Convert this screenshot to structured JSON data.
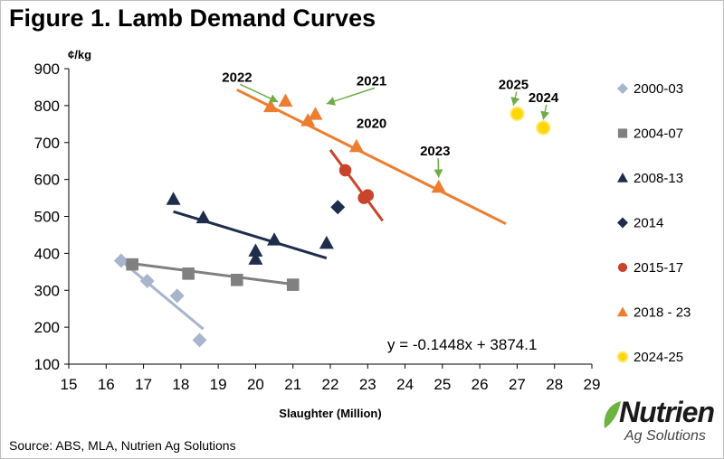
{
  "title": "Figure 1. Lamb Demand Curves",
  "source": "Source: ABS, MLA, Nutrien Ag Solutions",
  "logo": {
    "word": "Nutrien",
    "sub": "Ag Solutions"
  },
  "chart_data": {
    "type": "scatter",
    "xlabel": "Slaughter (Million)",
    "ylabel": "¢/kg",
    "xlim": [
      15,
      29
    ],
    "ylim": [
      100,
      900
    ],
    "x_ticks": [
      15,
      16,
      17,
      18,
      19,
      20,
      21,
      22,
      23,
      24,
      25,
      26,
      27,
      28,
      29
    ],
    "y_ticks": [
      100,
      200,
      300,
      400,
      500,
      600,
      700,
      800,
      900
    ],
    "grid": false,
    "legend_position": "right",
    "equation": "y = -0.1448x + 3874.1",
    "series": [
      {
        "name": "2000-03",
        "color": "#a9b5cf",
        "marker": "diamond",
        "points": [
          [
            16.4,
            380
          ],
          [
            17.1,
            325
          ],
          [
            17.9,
            285
          ],
          [
            18.5,
            165
          ]
        ],
        "trendline": [
          [
            16.4,
            380
          ],
          [
            18.6,
            195
          ]
        ]
      },
      {
        "name": "2004-07",
        "color": "#808080",
        "marker": "square",
        "points": [
          [
            16.7,
            370
          ],
          [
            18.2,
            345
          ],
          [
            19.5,
            328
          ],
          [
            21.0,
            315
          ]
        ],
        "trendline": [
          [
            16.5,
            375
          ],
          [
            21.1,
            315
          ]
        ]
      },
      {
        "name": "2008-13",
        "color": "#1f2d4d",
        "marker": "triangle",
        "points": [
          [
            17.8,
            547
          ],
          [
            18.6,
            497
          ],
          [
            20.0,
            407
          ],
          [
            20.0,
            385
          ],
          [
            20.5,
            437
          ],
          [
            21.9,
            428
          ]
        ],
        "trendline": [
          [
            17.8,
            513
          ],
          [
            21.9,
            387
          ]
        ]
      },
      {
        "name": "2014",
        "color": "#1f2d4d",
        "marker": "diamond",
        "points": [
          [
            22.2,
            525
          ]
        ],
        "trendline": []
      },
      {
        "name": "2015-17",
        "color": "#c8442c",
        "marker": "circle",
        "points": [
          [
            22.4,
            625
          ],
          [
            22.9,
            550
          ],
          [
            23.0,
            557
          ]
        ],
        "trendline": [
          [
            22.0,
            680
          ],
          [
            23.4,
            488
          ]
        ]
      },
      {
        "name": "2018 - 23",
        "color": "#ed7d31",
        "marker": "triangle",
        "points": [
          [
            20.4,
            798
          ],
          [
            20.8,
            813
          ],
          [
            21.4,
            760
          ],
          [
            21.6,
            777
          ],
          [
            22.7,
            690
          ],
          [
            24.9,
            580
          ]
        ],
        "trendline": [
          [
            19.5,
            843
          ],
          [
            26.7,
            480
          ]
        ]
      },
      {
        "name": "2024-25",
        "color": "#ffd700",
        "marker": "circle",
        "points": [
          [
            27.0,
            778
          ],
          [
            27.7,
            740
          ]
        ],
        "trendline": []
      }
    ],
    "annotations": [
      {
        "text": "2022",
        "x": 19.1,
        "y": 865,
        "arrow_to": [
          20.6,
          810
        ]
      },
      {
        "text": "2021",
        "x": 22.7,
        "y": 855,
        "arrow_to": [
          21.9,
          805
        ]
      },
      {
        "text": "2020",
        "x": 22.7,
        "y": 740,
        "arrow_to": null
      },
      {
        "text": "2023",
        "x": 24.4,
        "y": 665,
        "arrow_to": [
          24.9,
          605
        ]
      },
      {
        "text": "2025",
        "x": 26.5,
        "y": 845,
        "arrow_to": [
          26.9,
          800
        ]
      },
      {
        "text": "2024",
        "x": 27.3,
        "y": 810,
        "arrow_to": [
          27.7,
          762
        ]
      }
    ]
  }
}
